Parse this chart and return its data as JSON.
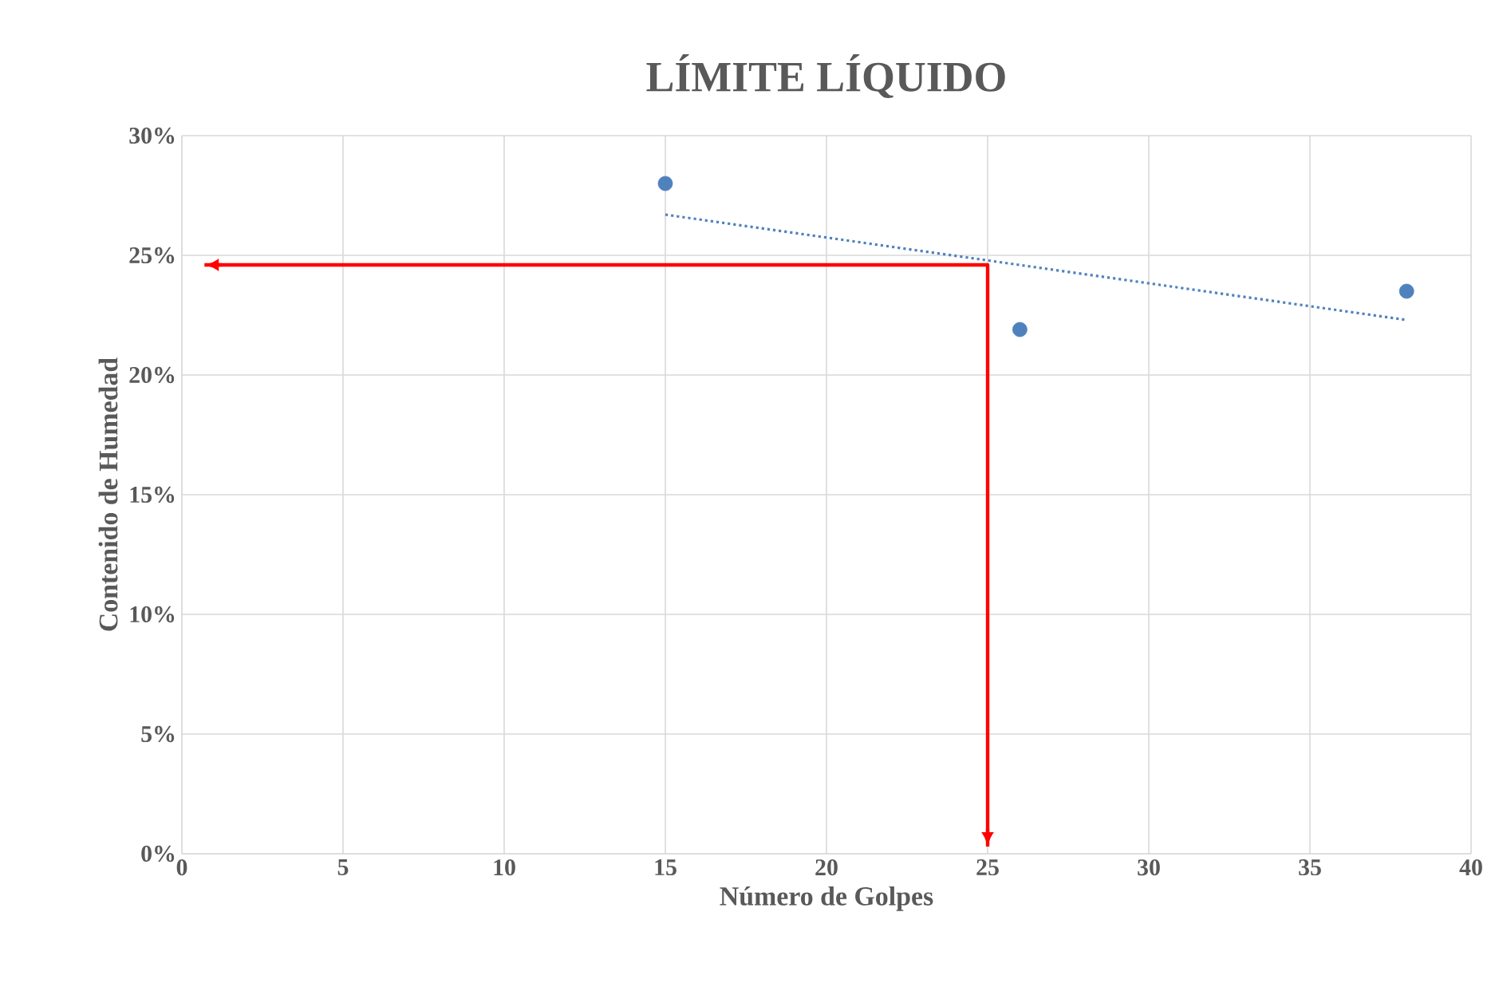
{
  "chart_data": {
    "type": "scatter",
    "title": "LÍMITE LÍQUIDO",
    "xlabel": "Número de Golpes",
    "ylabel": "Contenido de Humedad",
    "xlim": [
      0,
      40
    ],
    "xticks": [
      0,
      5,
      10,
      15,
      20,
      25,
      30,
      35,
      40
    ],
    "ylim": [
      0,
      30
    ],
    "yticks": [
      {
        "value": 0,
        "label": "0%"
      },
      {
        "value": 5,
        "label": "5%"
      },
      {
        "value": 10,
        "label": "10%"
      },
      {
        "value": 15,
        "label": "15%"
      },
      {
        "value": 20,
        "label": "20%"
      },
      {
        "value": 25,
        "label": "25%"
      },
      {
        "value": 30,
        "label": "30%"
      }
    ],
    "grid": true,
    "series": [
      {
        "color": "#4f81bd",
        "marker": "circle",
        "x": [
          15,
          26,
          38
        ],
        "values": [
          28.0,
          21.9,
          23.5
        ]
      },
      {
        "type": "line",
        "color": "#4f81bd",
        "marker": "none",
        "line_style": "dotted",
        "x": [
          15,
          38
        ],
        "values": [
          26.7,
          22.3
        ]
      },
      {
        "type": "line",
        "color": "#ff0000",
        "marker": "none",
        "line_style": "solid",
        "x": [
          0.7,
          25,
          25
        ],
        "values": [
          24.6,
          24.6,
          0.3
        ]
      }
    ]
  }
}
